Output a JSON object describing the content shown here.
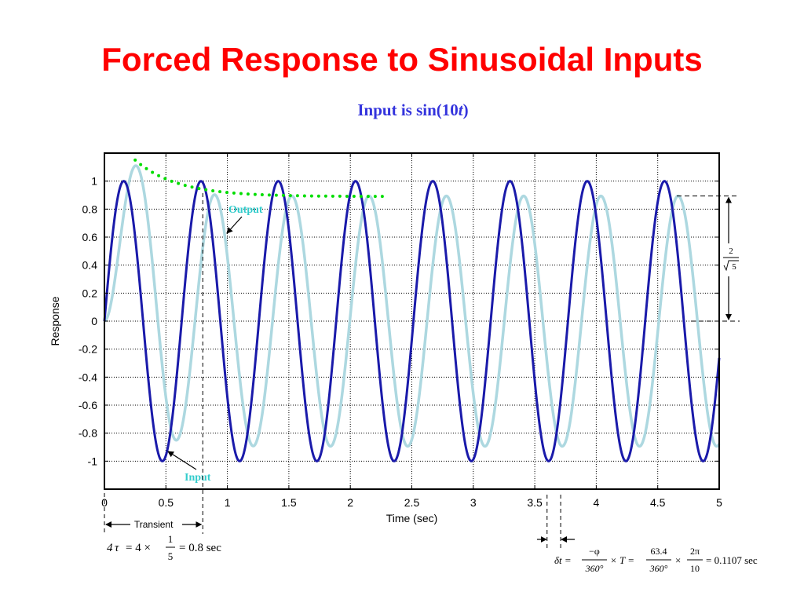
{
  "slide": {
    "title": "Forced Response to Sinusoidal Inputs",
    "subtitle_prefix": "Input is sin(10",
    "subtitle_var": "t",
    "subtitle_suffix": ")"
  },
  "chart_data": {
    "type": "line",
    "title": "",
    "xlabel": "Time (sec)",
    "ylabel": "Response",
    "xlim": [
      0,
      5
    ],
    "ylim": [
      -1.2,
      1.2
    ],
    "grid": true,
    "x_ticks": [
      0,
      0.5,
      1,
      1.5,
      2,
      2.5,
      3,
      3.5,
      4,
      4.5,
      5
    ],
    "x_tick_labels": [
      "0",
      "0.5",
      "1",
      "1.5",
      "2",
      "2.5",
      "3",
      "3.5",
      "4",
      "4.5",
      "5"
    ],
    "y_ticks": [
      1,
      0.8,
      0.6,
      0.4,
      0.2,
      0,
      -0.2,
      -0.4,
      -0.6,
      -0.8,
      -1
    ],
    "y_tick_labels": [
      "1",
      "0.8",
      "0.6",
      "0.4",
      "0.2",
      "0",
      "-0.2",
      "-0.4",
      "-0.6",
      "-0.8",
      "-1"
    ],
    "series": [
      {
        "name": "Input",
        "color": "#1a1aaa",
        "function": "sin(10t)",
        "amplitude": 1,
        "omega": 10,
        "phase_deg": 0
      },
      {
        "name": "Output",
        "color": "#add8e0",
        "function": "0.894 sin(10t - 63.4°) + 0.8 e^(-5t)",
        "amplitude": 0.894,
        "omega": 10,
        "phase_deg": -63.4,
        "transient_coef": 0.8,
        "time_constant": 0.2
      },
      {
        "name": "envelope",
        "color": "#00dd00",
        "style": "dotted",
        "x_range": [
          0.25,
          2.3
        ],
        "start_value": 1.15,
        "end_value": 0.89
      }
    ],
    "annotations": {
      "output_label": "Output",
      "input_label": "Input",
      "transient_label": "Transient",
      "amplitude_fraction_num": "2",
      "amplitude_fraction_den": "5",
      "amplitude_value": 0.894,
      "transient_end_time": 0.8,
      "delay_markers": [
        3.6,
        3.7107
      ],
      "formula_transient": {
        "lhs_coef": "4",
        "lhs_var": "τ",
        "eq1": "= 4 ×",
        "frac_num": "1",
        "frac_den": "5",
        "result": "= 0.8 sec"
      },
      "formula_delay": {
        "lhs": "δt =",
        "f1_num": "−φ",
        "f1_den": "360°",
        "mid": "× T =",
        "f2_num": "63.4",
        "f2_den": "360°",
        "times": "×",
        "f3_num": "2π",
        "f3_den": "10",
        "result": "= 0.1107 sec"
      }
    }
  }
}
